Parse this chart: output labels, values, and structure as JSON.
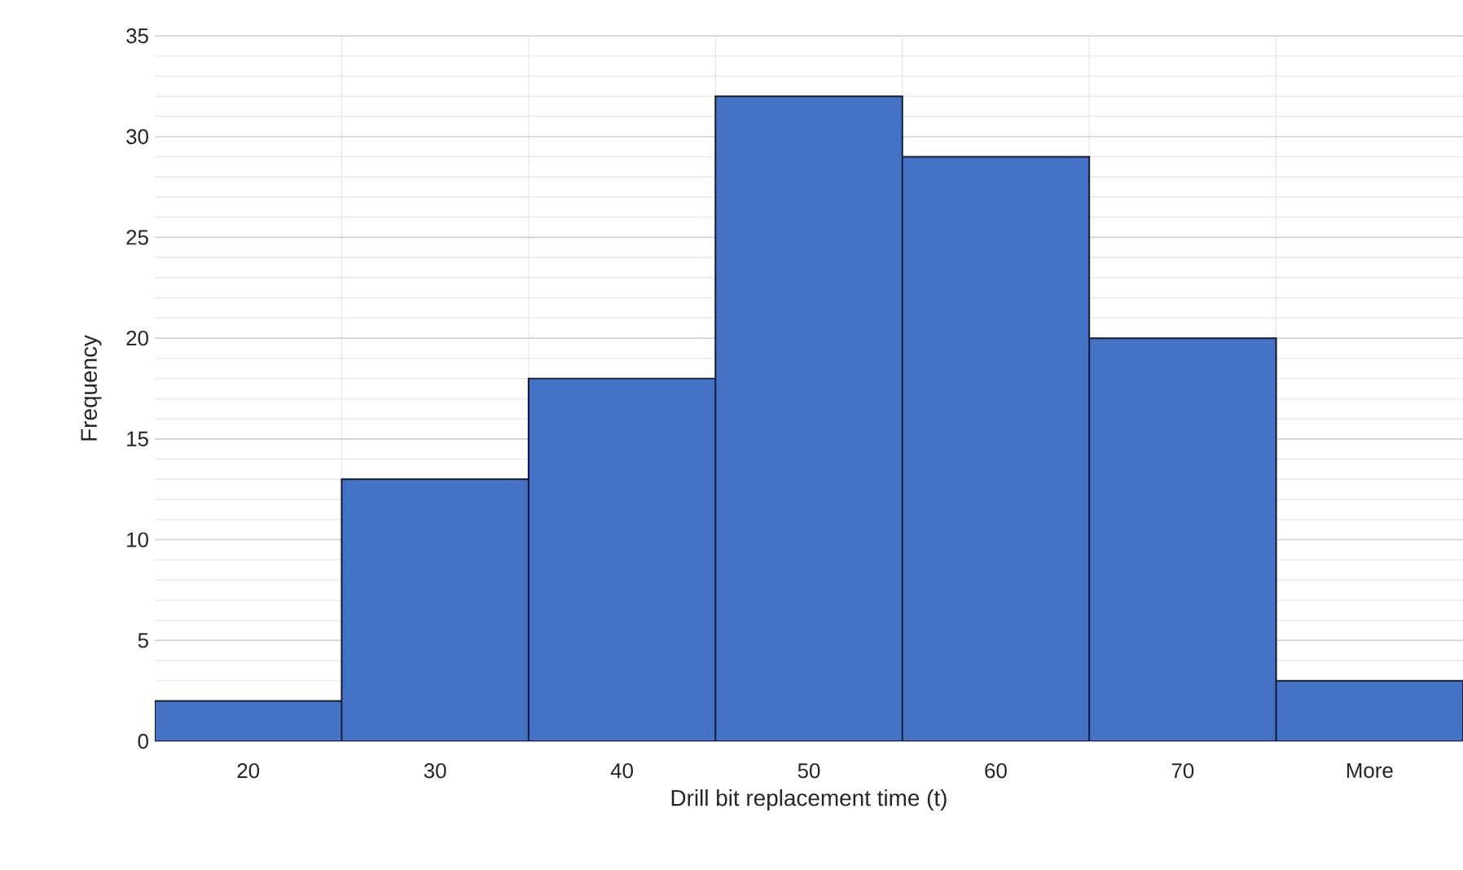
{
  "chart_data": {
    "type": "bar",
    "xlabel": "Drill bit replacement time (t)",
    "ylabel": "Frequency",
    "categories": [
      "20",
      "30",
      "40",
      "50",
      "60",
      "70",
      "More"
    ],
    "values": [
      2,
      13,
      18,
      32,
      29,
      20,
      3
    ],
    "color": "#4472c4",
    "ylim": [
      0,
      35
    ],
    "yticks": [
      0,
      5,
      10,
      15,
      20,
      25,
      30,
      35
    ],
    "grid": true
  }
}
